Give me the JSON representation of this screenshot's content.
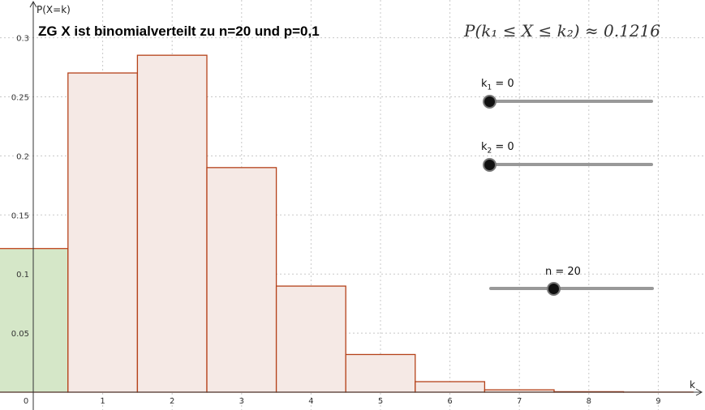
{
  "title": "ZG X ist binomialverteilt zu n=20 und p=0,1",
  "formula": "P(k₁ ≤ X ≤ k₂) ≈ 0.1216",
  "sliders": {
    "k1": {
      "var": "k",
      "sub": "1",
      "eq": " = 0",
      "value": 0,
      "min": 0,
      "max": 20
    },
    "k2": {
      "var": "k",
      "sub": "2",
      "eq": " = 0",
      "value": 0,
      "min": 0,
      "max": 20
    },
    "n": {
      "label": "n = 20",
      "value": 20,
      "min": 1,
      "max": 50
    }
  },
  "colors": {
    "bar_fill": "#f5e9e5",
    "bar_stroke": "#b5421a",
    "highlight_fill": "#d5e7c8",
    "highlight_stroke": "#c0431d",
    "grid": "#c8c8c8",
    "axis": "#333333"
  },
  "chart_data": {
    "type": "bar",
    "xlabel": "k",
    "ylabel": "P(X=k)",
    "categories": [
      "0",
      "1",
      "2",
      "3",
      "4",
      "5",
      "6",
      "7",
      "8",
      "9"
    ],
    "values": [
      0.1216,
      0.2702,
      0.2852,
      0.1901,
      0.0898,
      0.0319,
      0.0089,
      0.002,
      0.0004,
      0.0001
    ],
    "highlighted": [
      "0"
    ],
    "x_ticks": [
      "0",
      "1",
      "2",
      "3",
      "4",
      "5",
      "6",
      "7",
      "8",
      "9"
    ],
    "y_ticks": [
      "0.05",
      "0.1",
      "0.15",
      "0.2",
      "0.25",
      "0.3"
    ],
    "ylim": [
      0,
      0.33
    ],
    "xlim": [
      -0.48,
      9.66
    ],
    "grid": true
  }
}
